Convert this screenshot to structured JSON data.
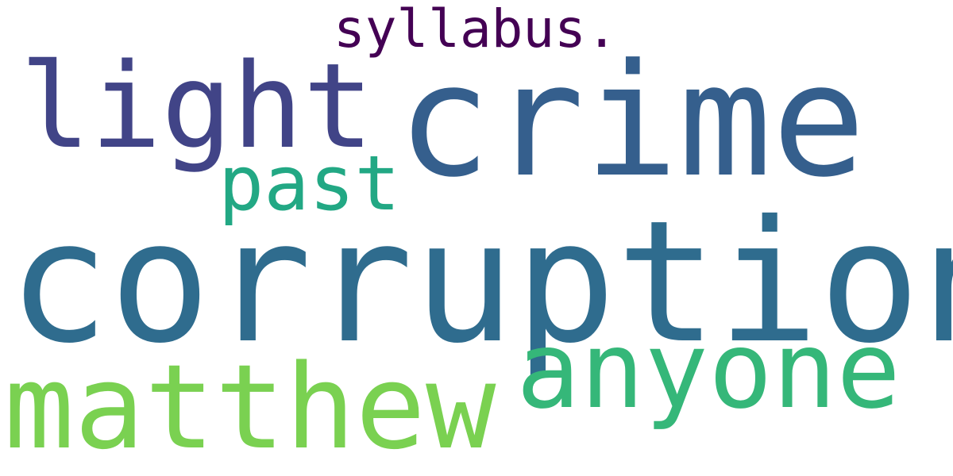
{
  "words": [
    {
      "text": "syllabus.",
      "color": "#440154"
    },
    {
      "text": "crime",
      "color": "#355f8d"
    },
    {
      "text": "light",
      "color": "#414487"
    },
    {
      "text": "past",
      "color": "#22a884"
    },
    {
      "text": "corruption",
      "color": "#2f6c8e"
    },
    {
      "text": "anyone",
      "color": "#35b779"
    },
    {
      "text": "matthew",
      "color": "#7ad151"
    }
  ]
}
